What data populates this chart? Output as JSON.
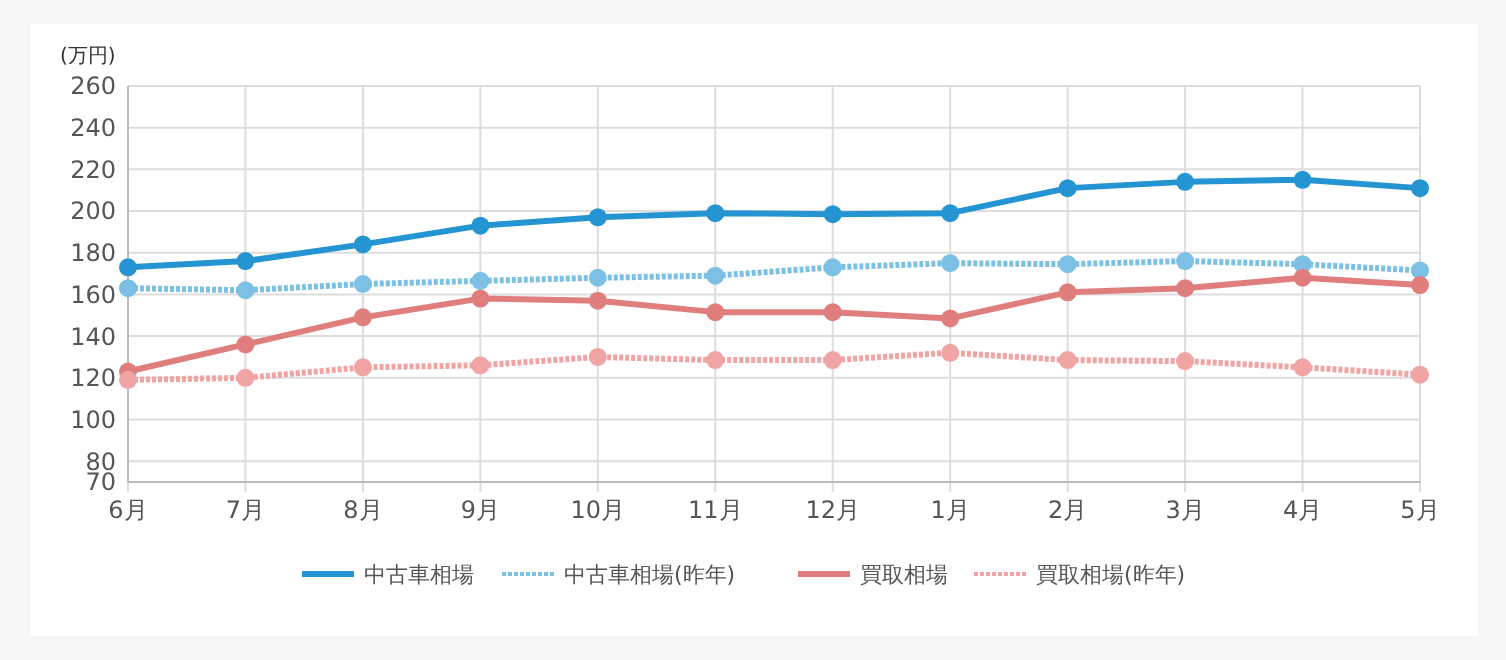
{
  "chart_data": {
    "type": "line",
    "ylabel": "(万円)",
    "categories": [
      "6月",
      "7月",
      "8月",
      "9月",
      "10月",
      "11月",
      "12月",
      "1月",
      "2月",
      "3月",
      "4月",
      "5月"
    ],
    "series": [
      {
        "name": "中古車相場",
        "color": "#2594d2",
        "line_style": "solid",
        "values": [
          173,
          176,
          184,
          193,
          197,
          199,
          198.5,
          199,
          211,
          214,
          215,
          211
        ]
      },
      {
        "name": "中古車相場(昨年)",
        "color": "#7cc0e6",
        "line_style": "dotted",
        "values": [
          163,
          162,
          165,
          166.5,
          168,
          169,
          173,
          175,
          174.5,
          176,
          174.5,
          171.5
        ]
      },
      {
        "name": "買取相場",
        "color": "#e07e7e",
        "line_style": "solid",
        "values": [
          123,
          136,
          149,
          158,
          157,
          151.5,
          151.5,
          148.5,
          161,
          163,
          168,
          164.5
        ]
      },
      {
        "name": "買取相場(昨年)",
        "color": "#f0a4a4",
        "line_style": "dotted",
        "values": [
          119,
          120,
          125,
          126,
          130,
          128.5,
          128.5,
          132,
          128.5,
          128,
          125,
          121.5
        ]
      }
    ],
    "ylim": [
      70,
      260
    ],
    "yticks": [
      70,
      80,
      100,
      120,
      140,
      160,
      180,
      200,
      220,
      240,
      260
    ],
    "grid": true,
    "legend": "bottom",
    "marker": "circle"
  }
}
